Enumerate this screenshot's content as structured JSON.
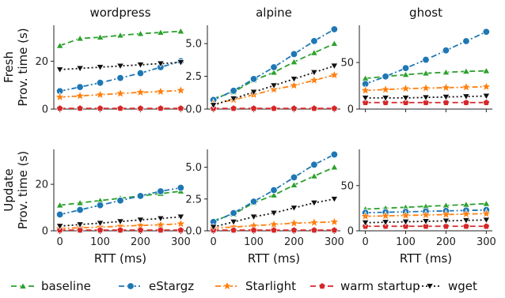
{
  "chart_data": {
    "type": "line",
    "column_titles": [
      "wordpress",
      "alpine",
      "ghost"
    ],
    "row_labels": [
      "Fresh\nProv. time (s)",
      "Update\nProv. time (s)"
    ],
    "xlabel": "RTT (ms)",
    "x": [
      0,
      50,
      100,
      150,
      200,
      250,
      300
    ],
    "x_ticks": [
      0,
      100,
      200,
      300
    ],
    "xlim": [
      -15,
      315
    ],
    "series_styles": [
      {
        "name": "baseline",
        "color": "#2ca02c",
        "marker": "triangle-up",
        "dash": "dash"
      },
      {
        "name": "eStargz",
        "color": "#1f77b4",
        "marker": "circle",
        "dash": "dashdot"
      },
      {
        "name": "Starlight",
        "color": "#ff7f0e",
        "marker": "star",
        "dash": "dashdot"
      },
      {
        "name": "warm startup",
        "color": "#d62728",
        "marker": "pentagon",
        "dash": "dash"
      },
      {
        "name": "wget",
        "color": "#111111",
        "marker": "triangle-down",
        "dash": "dot"
      }
    ],
    "legend_placement": "bottom",
    "panels": [
      {
        "row": 0,
        "col": 0,
        "ylim": [
          0,
          35
        ],
        "yticks": [
          0,
          20
        ],
        "series": [
          {
            "name": "baseline",
            "values": [
              26.5,
              29.5,
              30.0,
              30.8,
              31.5,
              32.0,
              32.5
            ]
          },
          {
            "name": "eStargz",
            "values": [
              7.5,
              9.2,
              11.0,
              13.0,
              15.0,
              17.5,
              20.0
            ]
          },
          {
            "name": "Starlight",
            "values": [
              5.0,
              5.5,
              6.0,
              6.5,
              7.0,
              7.3,
              7.8
            ]
          },
          {
            "name": "warm startup",
            "values": [
              0.3,
              0.3,
              0.3,
              0.3,
              0.3,
              0.3,
              0.3
            ]
          },
          {
            "name": "wget",
            "values": [
              16.5,
              17.0,
              17.5,
              18.0,
              18.5,
              19.0,
              19.5
            ]
          }
        ]
      },
      {
        "row": 0,
        "col": 1,
        "ylim": [
          0,
          6.4
        ],
        "yticks": [
          0.0,
          2.5,
          5.0
        ],
        "series": [
          {
            "name": "baseline",
            "values": [
              0.8,
              1.3,
              2.2,
              2.8,
              3.6,
              4.3,
              5.0
            ]
          },
          {
            "name": "eStargz",
            "values": [
              0.7,
              1.4,
              2.3,
              3.2,
              4.2,
              5.2,
              6.1
            ]
          },
          {
            "name": "Starlight",
            "values": [
              0.4,
              0.7,
              1.1,
              1.5,
              1.8,
              2.2,
              2.6
            ]
          },
          {
            "name": "warm startup",
            "values": [
              0.05,
              0.05,
              0.05,
              0.05,
              0.05,
              0.05,
              0.05
            ]
          },
          {
            "name": "wget",
            "values": [
              0.3,
              0.8,
              1.3,
              1.8,
              2.3,
              2.8,
              3.3
            ]
          }
        ]
      },
      {
        "row": 0,
        "col": 2,
        "ylim": [
          0,
          90
        ],
        "yticks": [
          0,
          50
        ],
        "series": [
          {
            "name": "baseline",
            "values": [
              33.0,
              35.0,
              37.0,
              38.5,
              39.5,
              40.5,
              41.0
            ]
          },
          {
            "name": "eStargz",
            "values": [
              27.0,
              35.0,
              44.0,
              53.0,
              63.0,
              73.0,
              83.0
            ]
          },
          {
            "name": "Starlight",
            "values": [
              20.0,
              21.0,
              22.0,
              22.5,
              23.0,
              23.5,
              24.0
            ]
          },
          {
            "name": "warm startup",
            "values": [
              7.0,
              7.0,
              7.0,
              7.0,
              7.0,
              7.0,
              7.0
            ]
          },
          {
            "name": "wget",
            "values": [
              12.0,
              12.0,
              12.0,
              12.5,
              13.0,
              13.5,
              14.0
            ]
          }
        ]
      },
      {
        "row": 1,
        "col": 0,
        "ylim": [
          0,
          35
        ],
        "yticks": [
          0,
          20
        ],
        "series": [
          {
            "name": "baseline",
            "values": [
              11.0,
              12.0,
              13.0,
              14.0,
              15.0,
              16.0,
              17.0
            ]
          },
          {
            "name": "eStargz",
            "values": [
              7.0,
              9.0,
              11.0,
              13.0,
              15.0,
              17.0,
              18.5
            ]
          },
          {
            "name": "Starlight",
            "values": [
              1.0,
              1.3,
              1.6,
              2.0,
              2.3,
              2.6,
              3.0
            ]
          },
          {
            "name": "warm startup",
            "values": [
              0.3,
              0.3,
              0.3,
              0.3,
              0.3,
              0.3,
              0.3
            ]
          },
          {
            "name": "wget",
            "values": [
              2.0,
              2.7,
              3.3,
              4.0,
              4.7,
              5.3,
              6.0
            ]
          }
        ]
      },
      {
        "row": 1,
        "col": 1,
        "ylim": [
          0,
          6.4
        ],
        "yticks": [
          0.0,
          2.5,
          5.0
        ],
        "series": [
          {
            "name": "baseline",
            "values": [
              0.8,
              1.3,
              2.2,
              2.8,
              3.6,
              4.3,
              5.0
            ]
          },
          {
            "name": "eStargz",
            "values": [
              0.7,
              1.4,
              2.3,
              3.2,
              4.2,
              5.2,
              6.0
            ]
          },
          {
            "name": "Starlight",
            "values": [
              0.2,
              0.3,
              0.4,
              0.5,
              0.6,
              0.65,
              0.7
            ]
          },
          {
            "name": "warm startup",
            "values": [
              0.05,
              0.05,
              0.05,
              0.05,
              0.05,
              0.05,
              0.05
            ]
          },
          {
            "name": "wget",
            "values": [
              0.3,
              0.7,
              1.1,
              1.4,
              1.8,
              2.2,
              2.5
            ]
          }
        ]
      },
      {
        "row": 1,
        "col": 2,
        "ylim": [
          0,
          90
        ],
        "yticks": [
          0,
          50
        ],
        "series": [
          {
            "name": "baseline",
            "values": [
              24.0,
              25.0,
              26.0,
              27.0,
              28.0,
              29.0,
              30.0
            ]
          },
          {
            "name": "eStargz",
            "values": [
              20.0,
              20.5,
              21.0,
              21.5,
              22.0,
              22.5,
              23.0
            ]
          },
          {
            "name": "Starlight",
            "values": [
              16.0,
              16.5,
              17.0,
              17.5,
              18.0,
              18.5,
              19.0
            ]
          },
          {
            "name": "warm startup",
            "values": [
              5.0,
              5.0,
              5.0,
              5.0,
              5.0,
              5.0,
              5.0
            ]
          },
          {
            "name": "wget",
            "values": [
              9.0,
              9.5,
              10.0,
              10.5,
              11.0,
              11.5,
              12.0
            ]
          }
        ]
      }
    ]
  }
}
